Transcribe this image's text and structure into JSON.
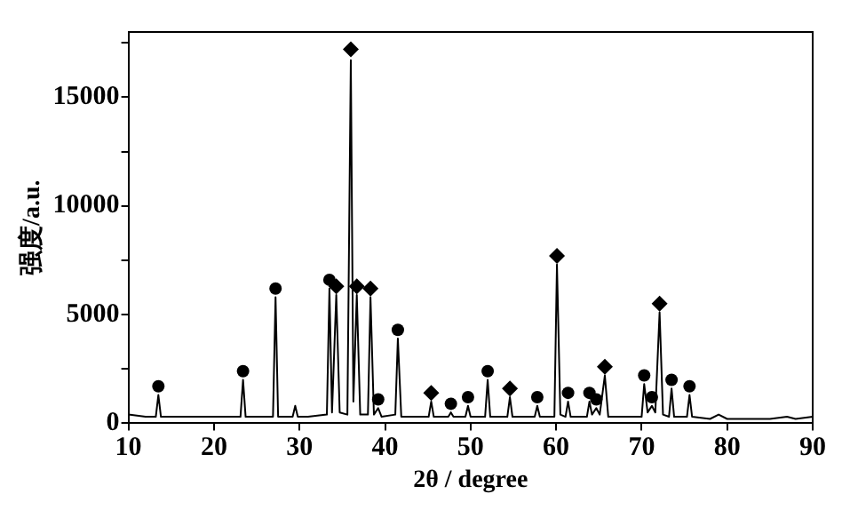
{
  "chart_data": {
    "type": "line",
    "xlabel": "2θ / degree",
    "ylabel": "强度/a.u.",
    "xlim": [
      10,
      90
    ],
    "xticks": [
      10,
      20,
      30,
      40,
      50,
      60,
      70,
      80,
      90
    ],
    "ylim": [
      0,
      18000
    ],
    "yticks": [
      0,
      {
        "value": 2500,
        "label": null
      },
      5000,
      {
        "value": 7500,
        "label": null
      },
      10000,
      {
        "value": 12500,
        "label": null
      },
      15000,
      {
        "value": 17500,
        "label": null
      }
    ],
    "grid": false,
    "legend": false,
    "marker": "none",
    "series": [
      {
        "type": "line",
        "color": "#000000",
        "x": [
          10,
          12,
          13.2,
          13.5,
          13.8,
          20,
          23.1,
          23.4,
          23.7,
          26.9,
          27.2,
          27.5,
          29.2,
          29.5,
          29.8,
          31,
          33.2,
          33.5,
          33.8,
          34.3,
          34.7,
          35.6,
          36,
          36.3,
          36.7,
          37.1,
          38,
          38.3,
          38.7,
          39.2,
          39.6,
          41.2,
          41.5,
          41.9,
          45.1,
          45.4,
          45.7,
          47.4,
          47.7,
          48,
          49.4,
          49.7,
          50,
          51.7,
          52,
          52.3,
          54.3,
          54.6,
          54.9,
          57.5,
          57.8,
          58.1,
          59.8,
          60.1,
          60.5,
          61.1,
          61.4,
          61.7,
          63.6,
          63.9,
          64.2,
          64.7,
          65.1,
          65.7,
          66.1,
          70,
          70.3,
          70.7,
          71.2,
          71.6,
          72.1,
          72.5,
          73.2,
          73.5,
          73.8,
          75.3,
          75.6,
          75.9,
          78,
          79,
          80,
          85,
          87,
          88,
          90
        ],
        "values": [
          400,
          300,
          300,
          1300,
          300,
          300,
          300,
          2000,
          300,
          300,
          5800,
          300,
          300,
          800,
          300,
          300,
          400,
          6200,
          500,
          5900,
          500,
          400,
          16700,
          1000,
          5900,
          400,
          400,
          5800,
          400,
          700,
          300,
          400,
          3900,
          300,
          300,
          1000,
          300,
          300,
          500,
          300,
          300,
          800,
          300,
          300,
          2000,
          300,
          300,
          1200,
          300,
          300,
          800,
          300,
          300,
          7300,
          400,
          300,
          1000,
          300,
          300,
          1000,
          400,
          700,
          400,
          2200,
          300,
          300,
          1800,
          500,
          800,
          500,
          5100,
          400,
          300,
          1600,
          300,
          300,
          1300,
          300,
          200,
          400,
          200,
          200,
          300,
          200,
          300
        ]
      },
      {
        "type": "scatter",
        "marker": "circle",
        "color": "#000000",
        "x": [
          13.5,
          23.4,
          27.2,
          33.5,
          39.2,
          41.5,
          47.7,
          49.7,
          52,
          57.8,
          61.4,
          63.9,
          64.7,
          70.3,
          71.2,
          73.5,
          75.6
        ],
        "values": [
          1700,
          2400,
          6200,
          6600,
          1100,
          4300,
          900,
          1200,
          2400,
          1200,
          1400,
          1400,
          1100,
          2200,
          1200,
          2000,
          1700
        ]
      },
      {
        "type": "scatter",
        "marker": "diamond",
        "color": "#000000",
        "x": [
          34.3,
          36,
          36.7,
          38.3,
          45.4,
          54.6,
          60.1,
          65.7,
          72.1
        ],
        "values": [
          6300,
          17200,
          6300,
          6200,
          1400,
          1600,
          7700,
          2600,
          5500
        ]
      }
    ]
  }
}
